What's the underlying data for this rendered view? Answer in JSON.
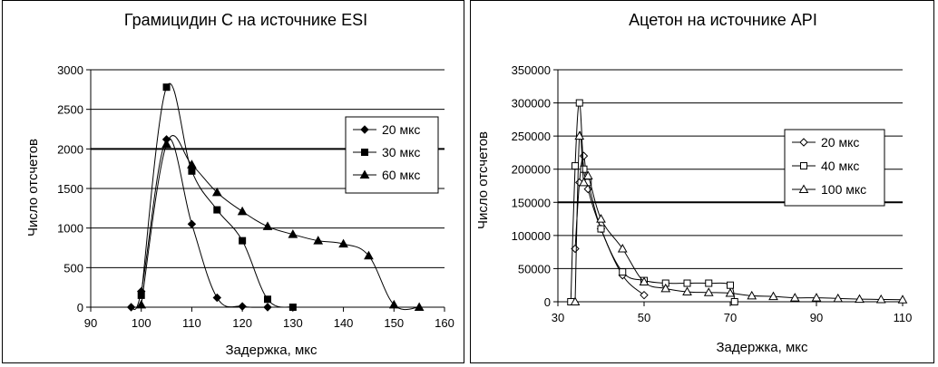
{
  "chart_data": [
    {
      "type": "line",
      "title": "Грамицидин С на источнике ESI",
      "xlabel": "Задержка,  мкс",
      "ylabel": "Число отсчетов",
      "xlim": [
        90,
        160
      ],
      "ylim": [
        0,
        3000
      ],
      "xticks": [
        "90",
        "100",
        "110",
        "120",
        "130",
        "140",
        "150",
        "160"
      ],
      "yticks": [
        "0",
        "500",
        "1000",
        "1500",
        "2000",
        "2500",
        "3000"
      ],
      "grid": "horizontal",
      "legend_position": "right",
      "series": [
        {
          "name": "20 мкс",
          "marker": "diamond",
          "points": [
            [
              98,
              0
            ],
            [
              100,
              200
            ],
            [
              105,
              2120
            ],
            [
              110,
              1050
            ],
            [
              115,
              120
            ],
            [
              120,
              10
            ],
            [
              125,
              0
            ]
          ]
        },
        {
          "name": "30 мкс",
          "marker": "square",
          "points": [
            [
              100,
              150
            ],
            [
              105,
              2780
            ],
            [
              110,
              1720
            ],
            [
              115,
              1230
            ],
            [
              120,
              840
            ],
            [
              125,
              100
            ],
            [
              130,
              0
            ]
          ]
        },
        {
          "name": "60 мкс",
          "marker": "triangle",
          "points": [
            [
              100,
              30
            ],
            [
              105,
              2060
            ],
            [
              110,
              1800
            ],
            [
              115,
              1450
            ],
            [
              120,
              1210
            ],
            [
              125,
              1020
            ],
            [
              130,
              920
            ],
            [
              135,
              840
            ],
            [
              140,
              800
            ],
            [
              145,
              650
            ],
            [
              150,
              30
            ],
            [
              155,
              0
            ]
          ]
        }
      ]
    },
    {
      "type": "line",
      "title": "Ацетон на источнике API",
      "xlabel": "Задержка,  мкс",
      "ylabel": "Число отсчетов",
      "xlim": [
        30,
        110
      ],
      "ylim": [
        0,
        350000
      ],
      "xticks": [
        "30",
        "50",
        "70",
        "90",
        "110"
      ],
      "yticks": [
        "0",
        "50000",
        "100000",
        "150000",
        "200000",
        "250000",
        "300000",
        "350000"
      ],
      "grid": "horizontal",
      "legend_position": "right",
      "series": [
        {
          "name": "20 мкс",
          "marker": "open-diamond",
          "points": [
            [
              34,
              80000
            ],
            [
              35,
              180000
            ],
            [
              36,
              220000
            ],
            [
              37,
              170000
            ],
            [
              40,
              110000
            ],
            [
              45,
              40000
            ],
            [
              50,
              10000
            ]
          ]
        },
        {
          "name": "40 мкс",
          "marker": "open-square",
          "points": [
            [
              33,
              0
            ],
            [
              34,
              205000
            ],
            [
              35,
              300000
            ],
            [
              36,
              200000
            ],
            [
              37,
              180000
            ],
            [
              40,
              110000
            ],
            [
              45,
              45000
            ],
            [
              50,
              32000
            ],
            [
              55,
              28000
            ],
            [
              60,
              28000
            ],
            [
              65,
              28000
            ],
            [
              70,
              25000
            ],
            [
              71,
              0
            ]
          ]
        },
        {
          "name": "100 мкс",
          "marker": "open-triangle",
          "points": [
            [
              34,
              0
            ],
            [
              35,
              250000
            ],
            [
              36,
              180000
            ],
            [
              37,
              190000
            ],
            [
              40,
              125000
            ],
            [
              45,
              80000
            ],
            [
              50,
              30000
            ],
            [
              55,
              20000
            ],
            [
              60,
              15000
            ],
            [
              65,
              14000
            ],
            [
              70,
              13000
            ],
            [
              75,
              9000
            ],
            [
              80,
              8000
            ],
            [
              85,
              6000
            ],
            [
              90,
              6000
            ],
            [
              95,
              5000
            ],
            [
              100,
              4000
            ],
            [
              105,
              3500
            ],
            [
              110,
              3000
            ]
          ]
        }
      ]
    }
  ]
}
